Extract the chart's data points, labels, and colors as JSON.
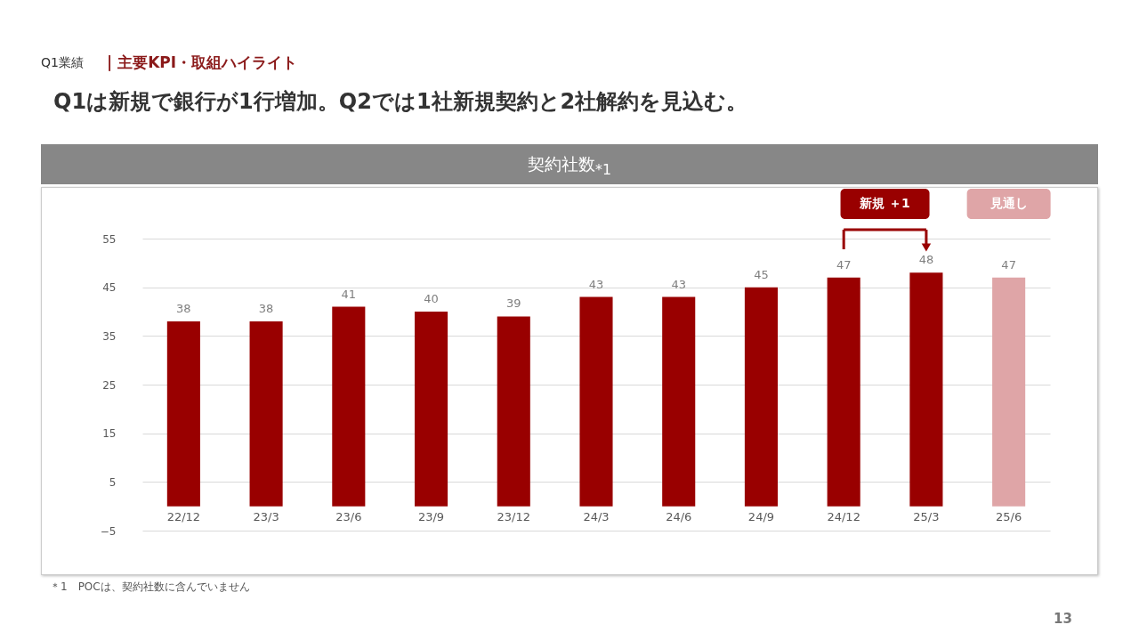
{
  "chart_data": {
    "type": "bar",
    "title": "契約社数$_{*1}$",
    "subtitle": "Q1は新規で銀行が1行増加。Q2では1社新規契約と2社解約を見込む。",
    "categories": [
      "22/12",
      "23/3",
      "23/6",
      "23/9",
      "23/12",
      "24/3",
      "24/6",
      "24/9",
      "24/12",
      "25/3",
      "25/6"
    ],
    "values": [
      38,
      38,
      41,
      40,
      39,
      43,
      43,
      45,
      47,
      48,
      47
    ],
    "colors": [
      "#990000",
      "#990000",
      "#990000",
      "#990000",
      "#990000",
      "#990000",
      "#990000",
      "#990000",
      "#990000",
      "#990000",
      "#dfa5a7"
    ],
    "ylim": [
      -5,
      55
    ],
    "yticks": [
      -5,
      5,
      15,
      25,
      35,
      45,
      55
    ],
    "grid": "y",
    "data_labels": true,
    "annotations": [
      "Q1業績",
      "| 主要KPI・取組ハイライト",
      "新規 ＋1",
      "見通し",
      "＊1　POCは、契約社数に含んでいません",
      "13"
    ]
  }
}
